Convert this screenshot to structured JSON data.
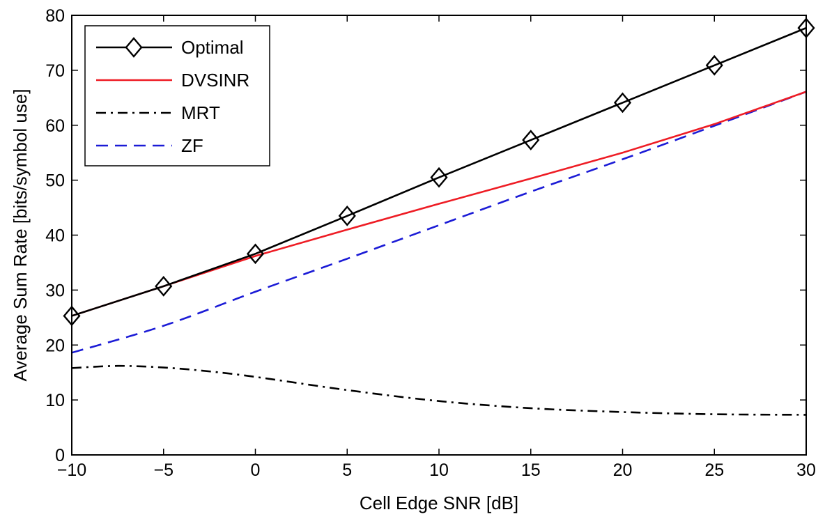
{
  "chart_data": {
    "type": "line",
    "title": "",
    "xlabel": "Cell Edge SNR [dB]",
    "ylabel": "Average Sum Rate [bits/symbol use]",
    "xlim": [
      -10,
      30
    ],
    "ylim": [
      0,
      80
    ],
    "xticks": [
      -10,
      -5,
      0,
      5,
      10,
      15,
      20,
      25,
      30
    ],
    "yticks": [
      0,
      10,
      20,
      30,
      40,
      50,
      60,
      70,
      80
    ],
    "xtick_labels": [
      "−10",
      "−5",
      "0",
      "5",
      "10",
      "15",
      "20",
      "25",
      "30"
    ],
    "ytick_labels": [
      "0",
      "10",
      "20",
      "30",
      "40",
      "50",
      "60",
      "70",
      "80"
    ],
    "grid": false,
    "legend_position": "top-left",
    "series": [
      {
        "name": "Optimal",
        "color": "#000000",
        "style": "solid",
        "marker": "diamond",
        "x": [
          -10,
          -5,
          0,
          5,
          10,
          15,
          20,
          25,
          30
        ],
        "y": [
          25.3,
          30.7,
          36.6,
          43.5,
          50.5,
          57.3,
          64.1,
          70.9,
          77.7
        ]
      },
      {
        "name": "DVSINR",
        "color": "#ee1c24",
        "style": "solid",
        "marker": "none",
        "x": [
          -10,
          -5,
          0,
          5,
          10,
          15,
          20,
          25,
          30
        ],
        "y": [
          25.3,
          30.7,
          36.2,
          41.0,
          45.7,
          50.3,
          55.0,
          60.2,
          66.1
        ]
      },
      {
        "name": "MRT",
        "color": "#000000",
        "style": "dashdot",
        "marker": "none",
        "x": [
          -10,
          -7.5,
          -5,
          -2.5,
          0,
          5,
          10,
          15,
          20,
          25,
          30
        ],
        "y": [
          15.8,
          16.2,
          15.9,
          15.2,
          14.2,
          11.8,
          9.8,
          8.5,
          7.8,
          7.4,
          7.3
        ]
      },
      {
        "name": "ZF",
        "color": "#1b1bd6",
        "style": "dashed",
        "marker": "none",
        "x": [
          -10,
          -5,
          0,
          5,
          10,
          15,
          20,
          25,
          30
        ],
        "y": [
          18.6,
          23.5,
          29.7,
          35.7,
          41.8,
          47.9,
          53.8,
          59.9,
          66.1
        ]
      }
    ]
  }
}
